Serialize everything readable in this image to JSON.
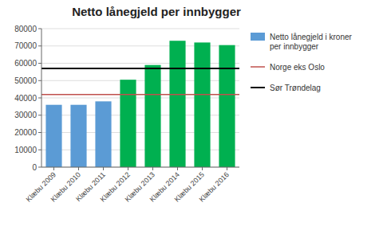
{
  "chart_data": {
    "type": "bar",
    "title": "Netto lånegjeld per innbygger",
    "categories": [
      "Klæbu 2009",
      "Klæbu 2010",
      "Klæbu 2011",
      "Klæbu 2012",
      "Klæbu 2013",
      "Klæbu 2014",
      "Klæbu 2015",
      "Klæbu 2016"
    ],
    "series": [
      {
        "name": "Netto lånegjeld i kroner\nper innbygger",
        "color": "#5B9BD5",
        "colors": [
          "#5B9BD5",
          "#5B9BD5",
          "#5B9BD5",
          "#00B050",
          "#00B050",
          "#00B050",
          "#00B050",
          "#00B050"
        ],
        "values": [
          36000,
          36000,
          38000,
          50500,
          59000,
          73000,
          72000,
          70500
        ]
      }
    ],
    "lines": [
      {
        "name": "Norge eks Oslo",
        "value": 42000,
        "color": "#C0504D"
      },
      {
        "name": "Sør Trøndelag",
        "value": 57000,
        "color": "#000000"
      }
    ],
    "ylim": [
      0,
      80000
    ],
    "yticks": [
      0,
      10000,
      20000,
      30000,
      40000,
      50000,
      60000,
      70000,
      80000
    ],
    "grid": true,
    "legend": "right"
  }
}
